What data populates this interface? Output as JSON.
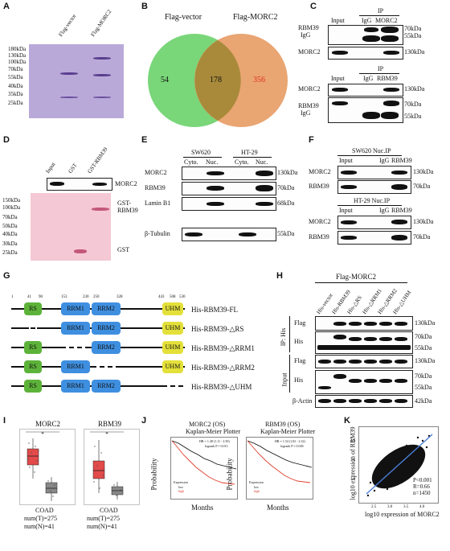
{
  "panels": {
    "A": "A",
    "B": "B",
    "C": "C",
    "D": "D",
    "E": "E",
    "F": "F",
    "G": "G",
    "H": "H",
    "I": "I",
    "J": "J",
    "K": "K"
  },
  "A": {
    "lanes": [
      "Flag-vector",
      "Flag-MORC2"
    ],
    "markers": [
      "180kDa",
      "130kDa",
      "100kDa",
      "70kDa",
      "55kDa",
      "40kDa",
      "35kDa",
      "25kDa"
    ]
  },
  "B": {
    "left_label": "Flag-vector",
    "right_label": "Flag-MORC2",
    "left_only": "54",
    "overlap": "178",
    "right_only": "356",
    "colors": {
      "left": "#6fd36f",
      "right": "#e8a06a",
      "right_text": "#e03020"
    }
  },
  "C": {
    "top": {
      "header": "IP",
      "lanes": [
        "Input",
        "IgG",
        "MORC2"
      ],
      "row_label_1": "RBM39",
      "row_label_2": "IgG",
      "kda_1": "70kDa",
      "kda_2": "55kDa",
      "morc2_label": "MORC2",
      "morc2_kda": "130kDa"
    },
    "bottom": {
      "header": "IP",
      "lanes": [
        "Input",
        "IgG",
        "RBM39"
      ],
      "morc2_label": "MORC2",
      "morc2_kda": "130kDa",
      "row_label_1": "RBM39",
      "row_label_2": "IgG",
      "kda_1": "70kDa",
      "kda_2": "55kDa"
    }
  },
  "D": {
    "lanes": [
      "Input",
      "GST",
      "GST-RBM39"
    ],
    "morc2_label": "MORC2",
    "markers": [
      "150kDa",
      "100kDa",
      "70kDa",
      "50kDa",
      "40kDa",
      "30kDa",
      "25kDa"
    ],
    "gst_rbm39_1": "GST-",
    "gst_rbm39_2": "RBM39",
    "gst": "GST"
  },
  "E": {
    "cells": [
      "SW620",
      "HT-29"
    ],
    "fractions": [
      "Cyto.",
      "Nuc.",
      "Cyto.",
      "Nuc."
    ],
    "rows": [
      {
        "label": "MORC2",
        "kda": "130kDa"
      },
      {
        "label": "RBM39",
        "kda": "70kDa"
      },
      {
        "label": "Lamin B1",
        "kda": "68kDa"
      },
      {
        "label": "β-Tubulin",
        "kda": "55kDa"
      }
    ]
  },
  "F": {
    "top": {
      "header": "SW620  Nuc.IP",
      "lanes": [
        "Input",
        "IgG",
        "RBM39"
      ],
      "rows": [
        {
          "label": "MORC2",
          "kda": "130kDa"
        },
        {
          "label": "RBM39",
          "kda": "70kDa"
        }
      ]
    },
    "bottom": {
      "header": "HT-29  Nuc.IP",
      "lanes": [
        "Input",
        "IgG",
        "RBM39"
      ],
      "rows": [
        {
          "label": "MORC2",
          "kda": "130kDa"
        },
        {
          "label": "RBM39",
          "kda": "70kDa"
        }
      ]
    }
  },
  "G": {
    "positions": [
      "1",
      "41",
      "90",
      "153",
      "230",
      "250",
      "328",
      "443",
      "508",
      "530"
    ],
    "constructs": [
      "His-RBM39-FL",
      "His-RBM39-△RS",
      "His-RBM39-△RRM1",
      "His-RBM39-△RRM2",
      "His-RBM39-△UHM"
    ],
    "domains": {
      "rs": "RS",
      "rrm1": "RRM1",
      "rrm2": "RRM2",
      "uhm": "UHM"
    },
    "colors": {
      "rs": "#5db33a",
      "rrm": "#3f8fe0",
      "uhm": "#e4e03a"
    }
  },
  "H": {
    "header": "Flag-MORC2",
    "lanes": [
      "His-vector",
      "His-RBM39",
      "His-△RS",
      "His-△RRM1",
      "His-△RRM2",
      "His-△UHM"
    ],
    "ip_label": "IP: His",
    "input_label": "Input",
    "rows": [
      {
        "label": "Flag",
        "kda": "130kDa"
      },
      {
        "label": "His",
        "kda_1": "70kDa",
        "kda_2": "55kDa"
      },
      {
        "label": "Flag",
        "kda": "130kDa"
      },
      {
        "label": "His",
        "kda_1": "70kDa",
        "kda_2": "55kDa"
      },
      {
        "label": "β-Actin",
        "kda": "42kDa"
      }
    ]
  },
  "I": {
    "plots": [
      {
        "title": "MORC2",
        "dataset": "COAD",
        "nt": "num(T)=275",
        "nn": "num(N)=41"
      },
      {
        "title": "RBM39",
        "dataset": "COAD",
        "nt": "num(T)=275",
        "nn": "num(N)=41"
      }
    ],
    "star": "*",
    "colors": {
      "tumor": "#e34a4a",
      "normal": "#888888"
    }
  },
  "J": {
    "plots": [
      {
        "title_1": "MORC2 (OS)",
        "title_2": "Kaplan-Meier Plotter",
        "hr": "HR = 1.48 (1.11 - 2.50)",
        "p": "logrank P = 0.013"
      },
      {
        "title_1": "RBM39 (OS)",
        "title_2": "Kaplan-Meier Plotter",
        "hr": "HR = 1.54 (1.02 - 2.32)",
        "p": "logrank P = 0.038"
      }
    ],
    "ylabel": "Probability",
    "xlabel": "Months",
    "legend_title": "Expression",
    "legend_low": "low",
    "legend_high": "high",
    "colors": {
      "low": "#111111",
      "high": "#e04030"
    }
  },
  "K": {
    "xlabel": "log10 expression of MORC2",
    "ylabel": "log10 expression of  RBM39",
    "p": "P<0.001",
    "r": "R=0.66",
    "n": "n=1450",
    "xticks": [
      "2.5",
      "3.0",
      "3.5",
      "4.0"
    ],
    "yticks": [
      "3.0",
      "3.5",
      "4.0"
    ]
  }
}
